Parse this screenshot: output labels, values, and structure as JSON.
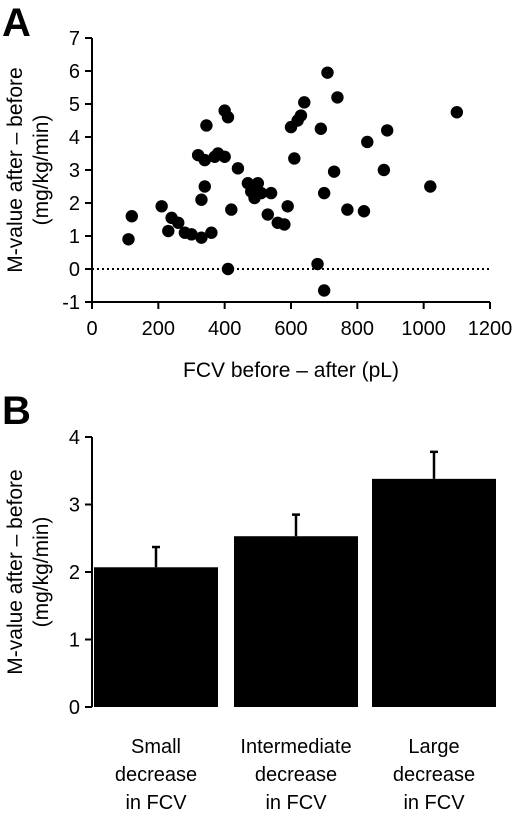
{
  "chart_data": [
    {
      "panel": "A",
      "type": "scatter",
      "xlabel": "FCV before – after (pL)",
      "ylabel_line1": "M-value after – before",
      "ylabel_line2": "(mg/kg/min)",
      "xlim": [
        0,
        1200
      ],
      "ylim": [
        -1,
        7
      ],
      "xticks": [
        0,
        200,
        400,
        600,
        800,
        1000,
        1200
      ],
      "yticks": [
        -1,
        0,
        1,
        2,
        3,
        4,
        5,
        6,
        7
      ],
      "reference_line": {
        "y": 0,
        "style": "dotted"
      },
      "points": [
        {
          "x": 110,
          "y": 0.9
        },
        {
          "x": 120,
          "y": 1.6
        },
        {
          "x": 210,
          "y": 1.9
        },
        {
          "x": 230,
          "y": 1.15
        },
        {
          "x": 240,
          "y": 1.55
        },
        {
          "x": 260,
          "y": 1.4
        },
        {
          "x": 280,
          "y": 1.1
        },
        {
          "x": 300,
          "y": 1.05
        },
        {
          "x": 320,
          "y": 3.45
        },
        {
          "x": 330,
          "y": 0.95
        },
        {
          "x": 330,
          "y": 2.1
        },
        {
          "x": 340,
          "y": 2.5
        },
        {
          "x": 340,
          "y": 3.3
        },
        {
          "x": 345,
          "y": 4.35
        },
        {
          "x": 360,
          "y": 1.1
        },
        {
          "x": 370,
          "y": 3.4
        },
        {
          "x": 380,
          "y": 3.5
        },
        {
          "x": 400,
          "y": 4.8
        },
        {
          "x": 400,
          "y": 3.4
        },
        {
          "x": 410,
          "y": 4.6
        },
        {
          "x": 410,
          "y": 0.0
        },
        {
          "x": 420,
          "y": 1.8
        },
        {
          "x": 440,
          "y": 3.05
        },
        {
          "x": 470,
          "y": 2.6
        },
        {
          "x": 480,
          "y": 2.35
        },
        {
          "x": 490,
          "y": 2.15
        },
        {
          "x": 500,
          "y": 2.6
        },
        {
          "x": 510,
          "y": 2.3
        },
        {
          "x": 530,
          "y": 1.65
        },
        {
          "x": 540,
          "y": 2.3
        },
        {
          "x": 560,
          "y": 1.4
        },
        {
          "x": 580,
          "y": 1.35
        },
        {
          "x": 590,
          "y": 1.9
        },
        {
          "x": 600,
          "y": 4.3
        },
        {
          "x": 610,
          "y": 3.35
        },
        {
          "x": 620,
          "y": 4.5
        },
        {
          "x": 630,
          "y": 4.65
        },
        {
          "x": 640,
          "y": 5.05
        },
        {
          "x": 680,
          "y": 0.15
        },
        {
          "x": 690,
          "y": 4.25
        },
        {
          "x": 700,
          "y": 2.3
        },
        {
          "x": 700,
          "y": -0.65
        },
        {
          "x": 710,
          "y": 5.95
        },
        {
          "x": 730,
          "y": 2.95
        },
        {
          "x": 740,
          "y": 5.2
        },
        {
          "x": 770,
          "y": 1.8
        },
        {
          "x": 820,
          "y": 1.75
        },
        {
          "x": 830,
          "y": 3.85
        },
        {
          "x": 880,
          "y": 3.0
        },
        {
          "x": 890,
          "y": 4.2
        },
        {
          "x": 1020,
          "y": 2.5
        },
        {
          "x": 1100,
          "y": 4.75
        }
      ]
    },
    {
      "panel": "B",
      "type": "bar",
      "ylabel_line1": "M-value after – before",
      "ylabel_line2": "(mg/kg/min)",
      "ylim": [
        0,
        4
      ],
      "yticks": [
        0,
        1,
        2,
        3,
        4
      ],
      "categories": [
        [
          "Small",
          "decrease",
          "in FCV"
        ],
        [
          "Intermediate",
          "decrease",
          "in FCV"
        ],
        [
          "Large",
          "decrease",
          "in FCV"
        ]
      ],
      "values": [
        2.07,
        2.53,
        3.38
      ],
      "errors": [
        0.3,
        0.32,
        0.4
      ]
    }
  ]
}
